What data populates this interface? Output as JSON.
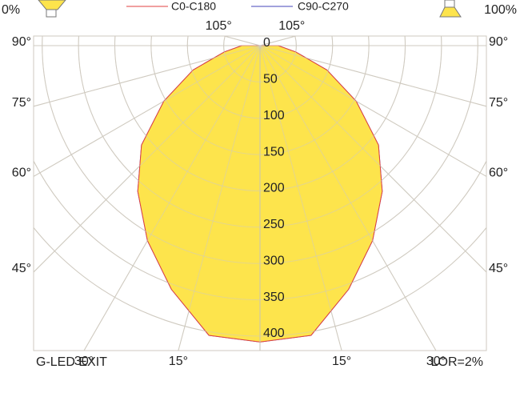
{
  "chart_data": {
    "type": "polar",
    "title": "G-LED EXIT",
    "annotation": "LOR=2%",
    "header_left": "0%",
    "header_right": "100%",
    "fill": "#fde44c",
    "angles": [
      -100,
      -90,
      -80,
      -70,
      -60,
      -50,
      -40,
      -30,
      -20,
      -10,
      0,
      10,
      20,
      30,
      40,
      50,
      60,
      70,
      80,
      90,
      100
    ],
    "series": [
      {
        "name": "C90-C270",
        "color": "#4646b8",
        "values": [
          0,
          25,
          50,
          98,
          153,
          213,
          262,
          310,
          357,
          405,
          408,
          405,
          357,
          310,
          262,
          213,
          153,
          98,
          50,
          25,
          0
        ]
      },
      {
        "name": "C0-C180",
        "color": "#e04040",
        "values": [
          0,
          25,
          50,
          98,
          153,
          213,
          262,
          310,
          357,
          405,
          408,
          405,
          357,
          310,
          262,
          213,
          153,
          98,
          50,
          25,
          0
        ]
      }
    ],
    "rlim": [
      0,
      400
    ],
    "rticks": [
      0,
      50,
      100,
      150,
      200,
      250,
      300,
      350,
      400
    ],
    "angle_ticks": [
      {
        "value": -105,
        "label": "105°"
      },
      {
        "value": -90,
        "label": "90°"
      },
      {
        "value": -75,
        "label": "75°"
      },
      {
        "value": -60,
        "label": "60°"
      },
      {
        "value": -45,
        "label": "45°"
      },
      {
        "value": -30,
        "label": "30°"
      },
      {
        "value": -15,
        "label": "15°"
      },
      {
        "value": 15,
        "label": "15°"
      },
      {
        "value": 30,
        "label": "30°"
      },
      {
        "value": 45,
        "label": "45°"
      },
      {
        "value": 60,
        "label": "60°"
      },
      {
        "value": 75,
        "label": "75°"
      },
      {
        "value": 90,
        "label": "90°"
      },
      {
        "value": 105,
        "label": "105°"
      }
    ],
    "grid": true
  }
}
